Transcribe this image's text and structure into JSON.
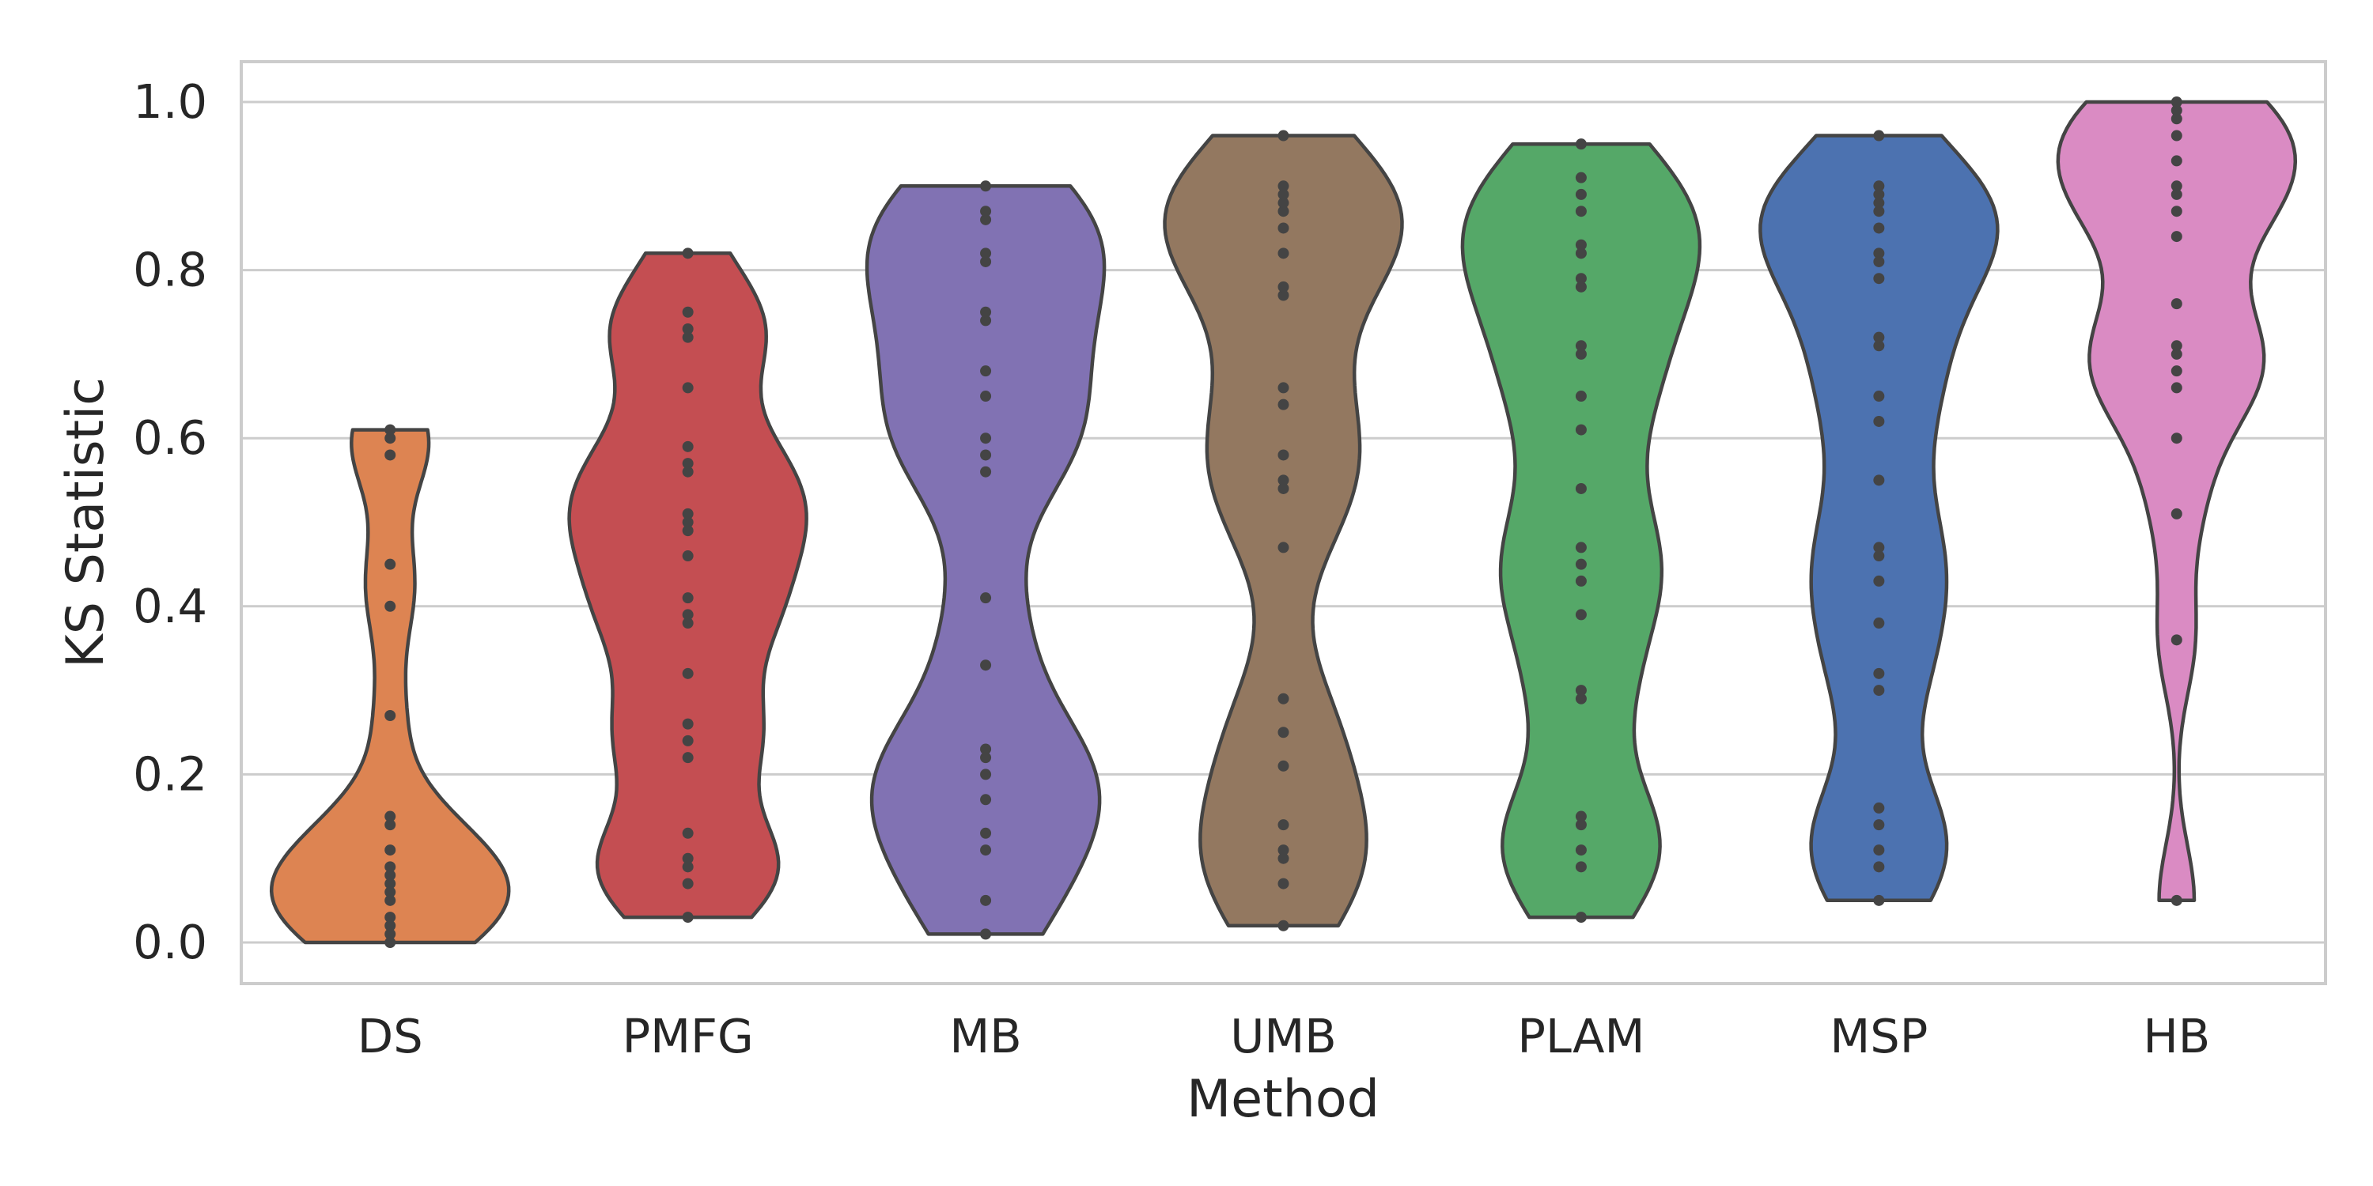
{
  "chart_data": {
    "type": "violin",
    "title": "",
    "xlabel": "Method",
    "ylabel": "KS Statistic",
    "ylim": [
      -0.05,
      1.05
    ],
    "yticks": [
      0.0,
      0.2,
      0.4,
      0.6,
      0.8,
      1.0
    ],
    "ytick_labels": [
      "0.0",
      "0.2",
      "0.4",
      "0.6",
      "0.8",
      "1.0"
    ],
    "grid": "horizontal",
    "inner": "points",
    "categories": [
      "DS",
      "PMFG",
      "MB",
      "UMB",
      "PLAM",
      "MSP",
      "HB"
    ],
    "colors": [
      "#dd8452",
      "#c44e52",
      "#8172b3",
      "#937860",
      "#55a868",
      "#4c72b0",
      "#da8bc3"
    ],
    "series": [
      {
        "category": "DS",
        "values": [
          0.0,
          0.01,
          0.02,
          0.03,
          0.05,
          0.06,
          0.07,
          0.08,
          0.09,
          0.11,
          0.14,
          0.15,
          0.27,
          0.4,
          0.45,
          0.58,
          0.6,
          0.61
        ]
      },
      {
        "category": "PMFG",
        "values": [
          0.03,
          0.07,
          0.09,
          0.1,
          0.13,
          0.22,
          0.24,
          0.26,
          0.32,
          0.38,
          0.39,
          0.41,
          0.46,
          0.49,
          0.5,
          0.51,
          0.56,
          0.57,
          0.59,
          0.66,
          0.72,
          0.73,
          0.75,
          0.82
        ]
      },
      {
        "category": "MB",
        "values": [
          0.01,
          0.05,
          0.11,
          0.13,
          0.17,
          0.2,
          0.22,
          0.23,
          0.33,
          0.41,
          0.56,
          0.58,
          0.6,
          0.65,
          0.68,
          0.74,
          0.75,
          0.81,
          0.82,
          0.86,
          0.87,
          0.9
        ]
      },
      {
        "category": "UMB",
        "values": [
          0.02,
          0.07,
          0.1,
          0.11,
          0.14,
          0.21,
          0.25,
          0.29,
          0.47,
          0.54,
          0.55,
          0.58,
          0.64,
          0.66,
          0.77,
          0.78,
          0.82,
          0.85,
          0.87,
          0.88,
          0.89,
          0.9,
          0.96
        ]
      },
      {
        "category": "PLAM",
        "values": [
          0.03,
          0.09,
          0.11,
          0.14,
          0.15,
          0.29,
          0.3,
          0.39,
          0.43,
          0.45,
          0.47,
          0.54,
          0.61,
          0.65,
          0.7,
          0.71,
          0.78,
          0.79,
          0.82,
          0.83,
          0.87,
          0.89,
          0.91,
          0.95
        ]
      },
      {
        "category": "MSP",
        "values": [
          0.05,
          0.09,
          0.11,
          0.14,
          0.16,
          0.3,
          0.32,
          0.38,
          0.43,
          0.46,
          0.47,
          0.55,
          0.62,
          0.65,
          0.71,
          0.72,
          0.79,
          0.81,
          0.82,
          0.85,
          0.87,
          0.88,
          0.89,
          0.9,
          0.96
        ]
      },
      {
        "category": "HB",
        "values": [
          0.05,
          0.36,
          0.51,
          0.6,
          0.66,
          0.68,
          0.7,
          0.71,
          0.76,
          0.84,
          0.87,
          0.89,
          0.9,
          0.93,
          0.96,
          0.98,
          0.99,
          1.0
        ]
      }
    ]
  }
}
